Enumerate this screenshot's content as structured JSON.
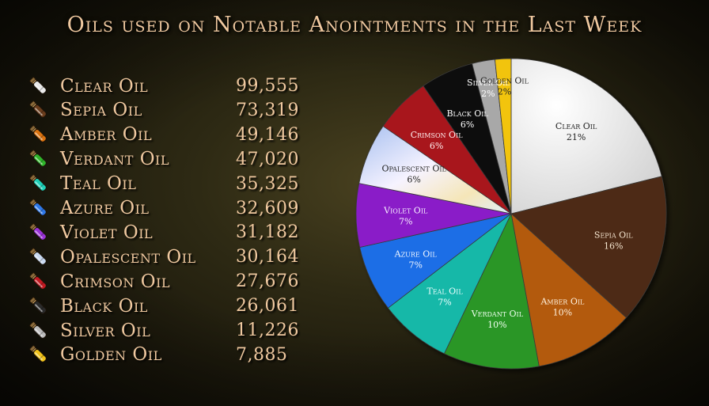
{
  "title": "Oils used on Notable Anointments in the Last Week",
  "colors": {
    "text": "#f0c9a0"
  },
  "chart_data": {
    "type": "pie",
    "title": "Oils used on Notable Anointments in the Last Week",
    "slices": [
      {
        "label": "Clear Oil",
        "value": 99555,
        "percent_label": "21%",
        "color": "#dcdcdc",
        "text_color": "#222"
      },
      {
        "label": "Sepia Oil",
        "value": 73319,
        "percent_label": "16%",
        "color": "#4e2c12",
        "text_color": "#f5e6d0"
      },
      {
        "label": "Amber Oil",
        "value": 49146,
        "percent_label": "10%",
        "color": "#b35a0a",
        "text_color": "#fff3e0"
      },
      {
        "label": "Verdant Oil",
        "value": 47020,
        "percent_label": "10%",
        "color": "#2a9628",
        "text_color": "#f0fff0"
      },
      {
        "label": "Teal Oil",
        "value": 35325,
        "percent_label": "7%",
        "color": "#14b8a8",
        "text_color": "#f0ffff"
      },
      {
        "label": "Azure Oil",
        "value": 32609,
        "percent_label": "7%",
        "color": "#1d6ee6",
        "text_color": "#f0f6ff"
      },
      {
        "label": "Violet Oil",
        "value": 31182,
        "percent_label": "7%",
        "color": "#8a1ec8",
        "text_color": "#f8f0ff"
      },
      {
        "label": "Opalescent Oil",
        "value": 30164,
        "percent_label": "6%",
        "color": "#dfeaf5",
        "text_color": "#222"
      },
      {
        "label": "Crimson Oil",
        "value": 27676,
        "percent_label": "6%",
        "color": "#a8141e",
        "text_color": "#fff0f0"
      },
      {
        "label": "Black Oil",
        "value": 26061,
        "percent_label": "6%",
        "color": "#0c0c0c",
        "text_color": "#ffffff"
      },
      {
        "label": "Silver Oil",
        "value": 11226,
        "percent_label": "2%",
        "color": "#a8a8a8",
        "text_color": "#ffffff"
      },
      {
        "label": "Golden Oil",
        "value": 7885,
        "percent_label": "2%",
        "color": "#f2c40a",
        "text_color": "#222"
      }
    ]
  },
  "list": [
    {
      "name": "Clear Oil",
      "count": "99,555",
      "vial_color": "#e8e8e8",
      "icon": "clear-oil-vial-icon"
    },
    {
      "name": "Sepia Oil",
      "count": "73,319",
      "vial_color": "#6b3d1c",
      "icon": "sepia-oil-vial-icon"
    },
    {
      "name": "Amber Oil",
      "count": "49,146",
      "vial_color": "#d9720f",
      "icon": "amber-oil-vial-icon"
    },
    {
      "name": "Verdant Oil",
      "count": "47,020",
      "vial_color": "#2fb52a",
      "icon": "verdant-oil-vial-icon"
    },
    {
      "name": "Teal Oil",
      "count": "35,325",
      "vial_color": "#1ed0b8",
      "icon": "teal-oil-vial-icon"
    },
    {
      "name": "Azure Oil",
      "count": "32,609",
      "vial_color": "#2e78e8",
      "icon": "azure-oil-vial-icon"
    },
    {
      "name": "Violet Oil",
      "count": "31,182",
      "vial_color": "#9a32d8",
      "icon": "violet-oil-vial-icon"
    },
    {
      "name": "Opalescent Oil",
      "count": "30,164",
      "vial_color": "#c8d8f0",
      "icon": "opalescent-oil-vial-icon"
    },
    {
      "name": "Crimson Oil",
      "count": "27,676",
      "vial_color": "#c21a22",
      "icon": "crimson-oil-vial-icon"
    },
    {
      "name": "Black Oil",
      "count": "26,061",
      "vial_color": "#2a2a2a",
      "icon": "black-oil-vial-icon"
    },
    {
      "name": "Silver Oil",
      "count": "11,226",
      "vial_color": "#bcbcbc",
      "icon": "silver-oil-vial-icon"
    },
    {
      "name": "Golden Oil",
      "count": "7,885",
      "vial_color": "#f0c21a",
      "icon": "golden-oil-vial-icon"
    }
  ]
}
